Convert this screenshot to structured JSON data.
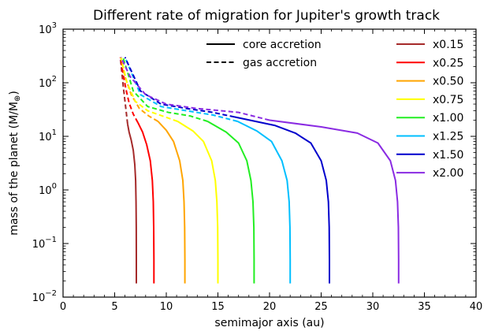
{
  "chart_data": {
    "type": "line",
    "title": "Different rate of migration for Jupiter's growth track",
    "xlabel": "semimajor axis (au)",
    "ylabel_main": "mass of the planet (M/M",
    "ylabel_sub": "⊕",
    "ylabel_end": ")",
    "xlim": [
      0,
      40
    ],
    "ylim": [
      0.01,
      1000
    ],
    "yscale": "log",
    "x_ticks": [
      0,
      5,
      10,
      15,
      20,
      25,
      30,
      35,
      40
    ],
    "x_tick_labels": [
      "0",
      "5",
      "10",
      "15",
      "20",
      "25",
      "30",
      "35",
      "40"
    ],
    "y_ticks": [
      0.01,
      0.1,
      1,
      10,
      100,
      1000
    ],
    "y_tick_labels": [
      {
        "base": "10",
        "exp": "−2"
      },
      {
        "base": "10",
        "exp": "−1"
      },
      {
        "base": "10",
        "exp": "0"
      },
      {
        "base": "10",
        "exp": "1"
      },
      {
        "base": "10",
        "exp": "2"
      },
      {
        "base": "10",
        "exp": "3"
      }
    ],
    "grid": false,
    "style_legend": [
      {
        "label": "core accretion",
        "dash": "solid"
      },
      {
        "label": "gas accretion",
        "dash": "dashed"
      }
    ],
    "series": [
      {
        "name": "x0.15",
        "color": "#a52a2a",
        "core": [
          [
            7.1,
            0.018
          ],
          [
            7.1,
            0.05
          ],
          [
            7.09,
            0.2
          ],
          [
            7.07,
            0.6
          ],
          [
            7.03,
            1.5
          ],
          [
            6.95,
            3
          ],
          [
            6.8,
            5.5
          ],
          [
            6.6,
            8.5
          ],
          [
            6.4,
            12
          ],
          [
            6.25,
            17
          ]
        ],
        "gas": [
          [
            6.25,
            17
          ],
          [
            6.15,
            25
          ],
          [
            6.0,
            45
          ],
          [
            5.85,
            80
          ],
          [
            5.7,
            150
          ],
          [
            5.55,
            300
          ]
        ]
      },
      {
        "name": "x0.25",
        "color": "#ff0000",
        "core": [
          [
            8.8,
            0.018
          ],
          [
            8.8,
            0.05
          ],
          [
            8.78,
            0.2
          ],
          [
            8.74,
            0.6
          ],
          [
            8.65,
            1.5
          ],
          [
            8.45,
            3.5
          ],
          [
            8.1,
            7
          ],
          [
            7.7,
            12
          ],
          [
            7.25,
            18
          ]
        ],
        "gas": [
          [
            7.25,
            18
          ],
          [
            6.8,
            26
          ],
          [
            6.4,
            42
          ],
          [
            6.1,
            75
          ],
          [
            5.8,
            150
          ],
          [
            5.55,
            300
          ]
        ]
      },
      {
        "name": "x0.50",
        "color": "#ffa500",
        "core": [
          [
            11.8,
            0.018
          ],
          [
            11.8,
            0.05
          ],
          [
            11.78,
            0.2
          ],
          [
            11.72,
            0.6
          ],
          [
            11.6,
            1.5
          ],
          [
            11.3,
            3.5
          ],
          [
            10.7,
            8
          ],
          [
            10.0,
            13
          ],
          [
            9.2,
            19
          ]
        ],
        "gas": [
          [
            9.2,
            19
          ],
          [
            8.3,
            24
          ],
          [
            7.4,
            33
          ],
          [
            6.6,
            60
          ],
          [
            6.0,
            130
          ],
          [
            5.6,
            300
          ]
        ]
      },
      {
        "name": "x0.75",
        "color": "#ffff00",
        "core": [
          [
            15.0,
            0.018
          ],
          [
            15.0,
            0.05
          ],
          [
            14.98,
            0.2
          ],
          [
            14.9,
            0.6
          ],
          [
            14.75,
            1.5
          ],
          [
            14.4,
            3.5
          ],
          [
            13.6,
            8
          ],
          [
            12.6,
            12.5
          ],
          [
            11.1,
            19
          ]
        ],
        "gas": [
          [
            11.1,
            19
          ],
          [
            9.6,
            24
          ],
          [
            8.2,
            30
          ],
          [
            7.0,
            45
          ],
          [
            6.2,
            100
          ],
          [
            5.6,
            300
          ]
        ]
      },
      {
        "name": "x1.00",
        "color": "#22ee22",
        "core": [
          [
            18.5,
            0.018
          ],
          [
            18.5,
            0.05
          ],
          [
            18.48,
            0.2
          ],
          [
            18.4,
            0.6
          ],
          [
            18.2,
            1.5
          ],
          [
            17.8,
            3.5
          ],
          [
            17.0,
            7.5
          ],
          [
            15.8,
            12
          ],
          [
            14.0,
            19
          ]
        ],
        "gas": [
          [
            14.0,
            19
          ],
          [
            12.3,
            24
          ],
          [
            10.2,
            28
          ],
          [
            8.2,
            36
          ],
          [
            6.8,
            70
          ],
          [
            5.8,
            300
          ]
        ]
      },
      {
        "name": "x1.25",
        "color": "#00bfff",
        "core": [
          [
            22.0,
            0.018
          ],
          [
            22.0,
            0.05
          ],
          [
            21.98,
            0.2
          ],
          [
            21.9,
            0.6
          ],
          [
            21.7,
            1.5
          ],
          [
            21.2,
            3.5
          ],
          [
            20.2,
            8
          ],
          [
            18.8,
            12.5
          ],
          [
            16.9,
            19
          ]
        ],
        "gas": [
          [
            16.9,
            19
          ],
          [
            14.5,
            25
          ],
          [
            12.0,
            30
          ],
          [
            9.5,
            36
          ],
          [
            7.5,
            60
          ],
          [
            6.0,
            300
          ]
        ]
      },
      {
        "name": "x1.50",
        "color": "#0000cc",
        "core": [
          [
            25.8,
            0.018
          ],
          [
            25.8,
            0.05
          ],
          [
            25.78,
            0.2
          ],
          [
            25.7,
            0.6
          ],
          [
            25.5,
            1.5
          ],
          [
            25.0,
            3.5
          ],
          [
            24.0,
            7.5
          ],
          [
            22.5,
            11.5
          ],
          [
            20.5,
            16
          ],
          [
            16.6,
            23
          ]
        ],
        "gas": [
          [
            16.6,
            23
          ],
          [
            14.5,
            28
          ],
          [
            12.0,
            33
          ],
          [
            9.5,
            40
          ],
          [
            7.5,
            70
          ],
          [
            6.0,
            300
          ]
        ]
      },
      {
        "name": "x2.00",
        "color": "#8a2be2",
        "core": [
          [
            32.5,
            0.018
          ],
          [
            32.5,
            0.05
          ],
          [
            32.48,
            0.2
          ],
          [
            32.4,
            0.6
          ],
          [
            32.2,
            1.5
          ],
          [
            31.7,
            3.5
          ],
          [
            30.5,
            7.5
          ],
          [
            28.5,
            11.5
          ],
          [
            25.0,
            15
          ],
          [
            20.0,
            20
          ]
        ],
        "gas": [
          [
            20.0,
            20
          ],
          [
            17.0,
            28
          ],
          [
            13.0,
            33
          ],
          [
            10.0,
            40
          ],
          [
            8.0,
            60
          ],
          [
            6.5,
            130
          ],
          [
            5.6,
            300
          ]
        ]
      }
    ]
  }
}
